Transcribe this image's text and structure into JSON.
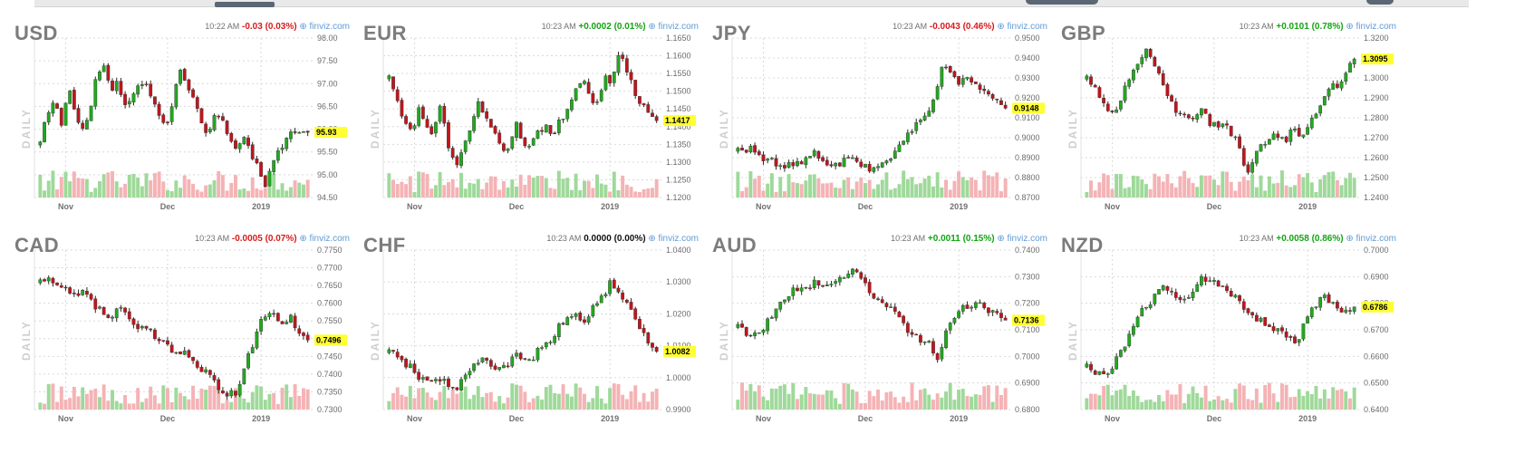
{
  "colors": {
    "up": "#22a81f",
    "down": "#c0151c",
    "vol_up": "#9fd99a",
    "vol_down": "#f4b3b5",
    "last_price_bg": "#ffff33",
    "change_up": "#14a314",
    "change_down": "#d61c1c",
    "change_flat": "#111111",
    "grid": "#d9d9d9"
  },
  "y_axis_label": "DAILY",
  "brand": "⊕ finviz.com",
  "chart_data": [
    {
      "type": "candlestick",
      "ticker": "USD",
      "time": "10:22 AM",
      "change": "-0.03 (0.03%)",
      "direction": "down",
      "last": 95.93,
      "last_label": "95.93",
      "yticks": [
        "98.00",
        "97.50",
        "97.00",
        "96.50",
        "96.00",
        "95.50",
        "95.00",
        "94.50"
      ],
      "ylim": [
        94.5,
        98.0
      ],
      "xticks": [
        "Nov",
        "Dec",
        "2019"
      ],
      "xtick_index": [
        6,
        30,
        52
      ],
      "path": [
        95.7,
        96.3,
        96.6,
        96.1,
        96.9,
        96.4,
        96.0,
        96.3,
        97.2,
        97.4,
        96.8,
        97.0,
        96.5,
        96.7,
        96.9,
        97.1,
        96.6,
        96.3,
        96.0,
        96.8,
        97.3,
        96.9,
        96.7,
        96.1,
        95.9,
        96.4,
        96.2,
        95.8,
        95.6,
        95.9,
        95.4,
        95.1,
        94.8,
        95.2,
        95.6,
        95.8,
        96.0,
        95.9,
        95.93
      ]
    },
    {
      "type": "candlestick",
      "ticker": "EUR",
      "time": "10:23 AM",
      "change": "+0.0002 (0.01%)",
      "direction": "up",
      "last": 1.1417,
      "last_label": "1.1417",
      "yticks": [
        "1.1650",
        "1.1600",
        "1.1550",
        "1.1500",
        "1.1450",
        "1.1400",
        "1.1350",
        "1.1300",
        "1.1250",
        "1.1200"
      ],
      "ylim": [
        1.12,
        1.165
      ],
      "xticks": [
        "Nov",
        "Dec",
        "2019"
      ],
      "xtick_index": [
        6,
        30,
        52
      ],
      "path": [
        1.154,
        1.147,
        1.142,
        1.138,
        1.145,
        1.14,
        1.137,
        1.148,
        1.134,
        1.128,
        1.133,
        1.14,
        1.146,
        1.142,
        1.138,
        1.135,
        1.133,
        1.141,
        1.136,
        1.134,
        1.138,
        1.14,
        1.137,
        1.142,
        1.145,
        1.15,
        1.154,
        1.149,
        1.146,
        1.155,
        1.152,
        1.161,
        1.156,
        1.15,
        1.146,
        1.143,
        1.1417
      ]
    },
    {
      "type": "candlestick",
      "ticker": "JPY",
      "time": "10:23 AM",
      "change": "-0.0043 (0.46%)",
      "direction": "down",
      "last": 0.9148,
      "last_label": "0.9148",
      "yticks": [
        "0.9500",
        "0.9400",
        "0.9300",
        "0.9200",
        "0.9100",
        "0.9000",
        "0.8900",
        "0.8800",
        "0.8700"
      ],
      "ylim": [
        0.87,
        0.95
      ],
      "xticks": [
        "Nov",
        "Dec",
        "2019"
      ],
      "xtick_index": [
        6,
        30,
        52
      ],
      "path": [
        0.894,
        0.893,
        0.895,
        0.891,
        0.889,
        0.887,
        0.885,
        0.886,
        0.888,
        0.89,
        0.892,
        0.888,
        0.885,
        0.886,
        0.889,
        0.89,
        0.887,
        0.884,
        0.885,
        0.888,
        0.89,
        0.895,
        0.9,
        0.905,
        0.91,
        0.915,
        0.925,
        0.938,
        0.93,
        0.928,
        0.93,
        0.926,
        0.923,
        0.92,
        0.917,
        0.9148
      ]
    },
    {
      "type": "candlestick",
      "ticker": "GBP",
      "time": "10:23 AM",
      "change": "+0.0101 (0.78%)",
      "direction": "up",
      "last": 1.3095,
      "last_label": "1.3095",
      "yticks": [
        "1.3200",
        "1.3000",
        "1.2900",
        "1.2800",
        "1.2700",
        "1.2600",
        "1.2500",
        "1.2400"
      ],
      "ylim": [
        1.24,
        1.32
      ],
      "xticks": [
        "Nov",
        "Dec",
        "2019"
      ],
      "xtick_index": [
        6,
        30,
        52
      ],
      "path": [
        1.3,
        1.295,
        1.288,
        1.28,
        1.285,
        1.295,
        1.302,
        1.308,
        1.315,
        1.305,
        1.295,
        1.288,
        1.282,
        1.28,
        1.279,
        1.283,
        1.278,
        1.275,
        1.28,
        1.272,
        1.265,
        1.25,
        1.26,
        1.268,
        1.27,
        1.272,
        1.268,
        1.275,
        1.27,
        1.278,
        1.282,
        1.29,
        1.298,
        1.295,
        1.305,
        1.3095
      ]
    },
    {
      "type": "candlestick",
      "ticker": "CAD",
      "time": "10:23 AM",
      "change": "-0.0005 (0.07%)",
      "direction": "down",
      "last": 0.7496,
      "last_label": "0.7496",
      "yticks": [
        "0.7750",
        "0.7700",
        "0.7650",
        "0.7600",
        "0.7550",
        "0.7500",
        "0.7450",
        "0.7400",
        "0.7350",
        "0.7300"
      ],
      "ylim": [
        0.73,
        0.775
      ],
      "xticks": [
        "Nov",
        "Dec",
        "2019"
      ],
      "xtick_index": [
        6,
        30,
        52
      ],
      "path": [
        0.766,
        0.768,
        0.765,
        0.764,
        0.762,
        0.764,
        0.76,
        0.757,
        0.756,
        0.759,
        0.755,
        0.752,
        0.753,
        0.75,
        0.748,
        0.746,
        0.747,
        0.744,
        0.742,
        0.739,
        0.736,
        0.734,
        0.735,
        0.742,
        0.75,
        0.756,
        0.758,
        0.755,
        0.756,
        0.752,
        0.7496
      ]
    },
    {
      "type": "candlestick",
      "ticker": "CHF",
      "time": "10:23 AM",
      "change": "0.0000 (0.00%)",
      "direction": "flat",
      "last": 1.0082,
      "last_label": "1.0082",
      "yticks": [
        "1.0400",
        "1.0300",
        "1.0200",
        "1.0100",
        "1.0000",
        "0.9900"
      ],
      "ylim": [
        0.99,
        1.04
      ],
      "xticks": [
        "Nov",
        "Dec",
        "2019"
      ],
      "xtick_index": [
        6,
        30,
        52
      ],
      "path": [
        1.008,
        1.006,
        1.004,
        1.001,
        0.998,
        0.999,
        1.0,
        0.996,
        0.999,
        1.003,
        1.006,
        1.004,
        1.002,
        1.005,
        1.007,
        1.004,
        1.008,
        1.01,
        1.014,
        1.018,
        1.02,
        1.016,
        1.022,
        1.025,
        1.03,
        1.027,
        1.022,
        1.016,
        1.011,
        1.0082
      ]
    },
    {
      "type": "candlestick",
      "ticker": "AUD",
      "time": "10:23 AM",
      "change": "+0.0011 (0.15%)",
      "direction": "up",
      "last": 0.7136,
      "last_label": "0.7136",
      "yticks": [
        "0.7400",
        "0.7300",
        "0.7200",
        "0.7100",
        "0.7000",
        "0.6900",
        "0.6800"
      ],
      "ylim": [
        0.68,
        0.74
      ],
      "xticks": [
        "Nov",
        "Dec",
        "2019"
      ],
      "xtick_index": [
        6,
        30,
        52
      ],
      "path": [
        0.711,
        0.709,
        0.708,
        0.712,
        0.718,
        0.723,
        0.726,
        0.724,
        0.728,
        0.725,
        0.727,
        0.73,
        0.734,
        0.728,
        0.723,
        0.72,
        0.718,
        0.715,
        0.709,
        0.706,
        0.705,
        0.699,
        0.712,
        0.716,
        0.719,
        0.721,
        0.718,
        0.716,
        0.7136
      ]
    },
    {
      "type": "candlestick",
      "ticker": "NZD",
      "time": "10:23 AM",
      "change": "+0.0058 (0.86%)",
      "direction": "up",
      "last": 0.6786,
      "last_label": "0.6786",
      "yticks": [
        "0.7000",
        "0.6900",
        "0.6800",
        "0.6700",
        "0.6600",
        "0.6500",
        "0.6400"
      ],
      "ylim": [
        0.64,
        0.7
      ],
      "xticks": [
        "Nov",
        "Dec",
        "2019"
      ],
      "xtick_index": [
        6,
        30,
        52
      ],
      "path": [
        0.656,
        0.653,
        0.654,
        0.658,
        0.665,
        0.672,
        0.678,
        0.682,
        0.686,
        0.683,
        0.68,
        0.685,
        0.69,
        0.688,
        0.686,
        0.684,
        0.68,
        0.676,
        0.674,
        0.672,
        0.67,
        0.668,
        0.666,
        0.674,
        0.68,
        0.682,
        0.678,
        0.676,
        0.6786
      ]
    }
  ]
}
